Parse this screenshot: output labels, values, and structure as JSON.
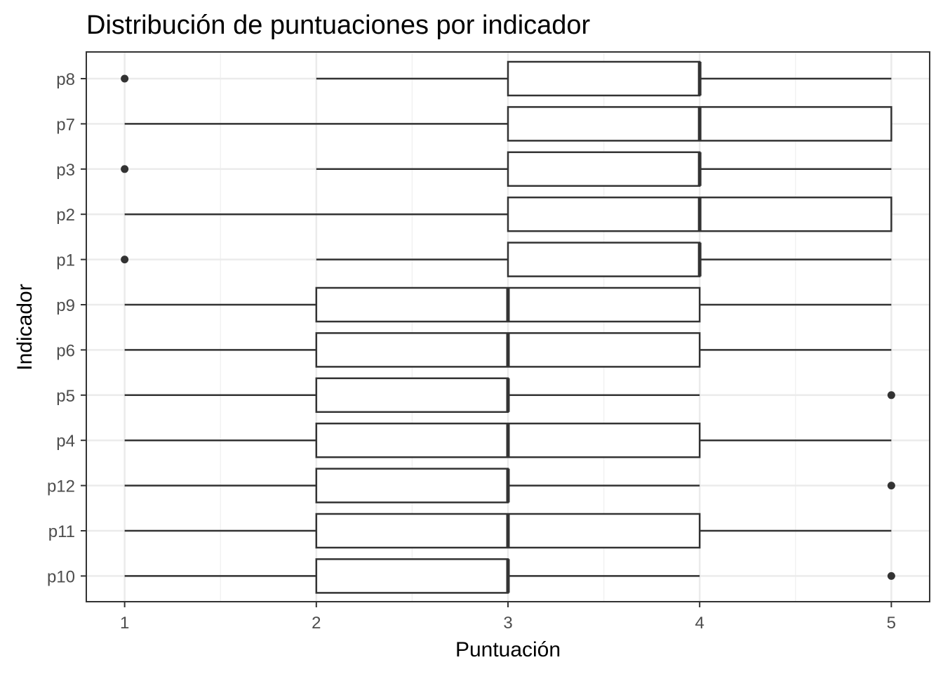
{
  "chart_data": {
    "type": "boxplot",
    "title": "Distribución de puntuaciones por indicador",
    "xlabel": "Puntuación",
    "ylabel": "Indicador",
    "xlim": [
      0.8,
      5.2
    ],
    "xticks": [
      1,
      2,
      3,
      4,
      5
    ],
    "xtick_labels": [
      "1",
      "2",
      "3",
      "4",
      "5"
    ],
    "grid": true,
    "orientation": "horizontal",
    "categories": [
      "p8",
      "p7",
      "p3",
      "p2",
      "p1",
      "p9",
      "p6",
      "p5",
      "p4",
      "p12",
      "p11",
      "p10"
    ],
    "boxes": [
      {
        "label": "p8",
        "whisker_low": 2,
        "q1": 3,
        "median": 4,
        "q3": 4,
        "whisker_high": 5,
        "outliers": [
          1
        ]
      },
      {
        "label": "p7",
        "whisker_low": 1,
        "q1": 3,
        "median": 4,
        "q3": 5,
        "whisker_high": 5,
        "outliers": []
      },
      {
        "label": "p3",
        "whisker_low": 2,
        "q1": 3,
        "median": 4,
        "q3": 4,
        "whisker_high": 5,
        "outliers": [
          1
        ]
      },
      {
        "label": "p2",
        "whisker_low": 1,
        "q1": 3,
        "median": 4,
        "q3": 5,
        "whisker_high": 5,
        "outliers": []
      },
      {
        "label": "p1",
        "whisker_low": 2,
        "q1": 3,
        "median": 4,
        "q3": 4,
        "whisker_high": 5,
        "outliers": [
          1
        ]
      },
      {
        "label": "p9",
        "whisker_low": 1,
        "q1": 2,
        "median": 3,
        "q3": 4,
        "whisker_high": 5,
        "outliers": []
      },
      {
        "label": "p6",
        "whisker_low": 1,
        "q1": 2,
        "median": 3,
        "q3": 4,
        "whisker_high": 5,
        "outliers": []
      },
      {
        "label": "p5",
        "whisker_low": 1,
        "q1": 2,
        "median": 3,
        "q3": 3,
        "whisker_high": 4,
        "outliers": [
          5
        ]
      },
      {
        "label": "p4",
        "whisker_low": 1,
        "q1": 2,
        "median": 3,
        "q3": 4,
        "whisker_high": 5,
        "outliers": []
      },
      {
        "label": "p12",
        "whisker_low": 1,
        "q1": 2,
        "median": 3,
        "q3": 3,
        "whisker_high": 4,
        "outliers": [
          5
        ]
      },
      {
        "label": "p11",
        "whisker_low": 1,
        "q1": 2,
        "median": 3,
        "q3": 4,
        "whisker_high": 5,
        "outliers": []
      },
      {
        "label": "p10",
        "whisker_low": 1,
        "q1": 2,
        "median": 3,
        "q3": 3,
        "whisker_high": 4,
        "outliers": [
          5
        ]
      }
    ],
    "colors": {
      "box_line": "#333333",
      "grid_major": "#ebebeb",
      "grid_minor": "#f2f2f2",
      "panel_border": "#333333",
      "tick_label": "#4d4d4d"
    }
  }
}
